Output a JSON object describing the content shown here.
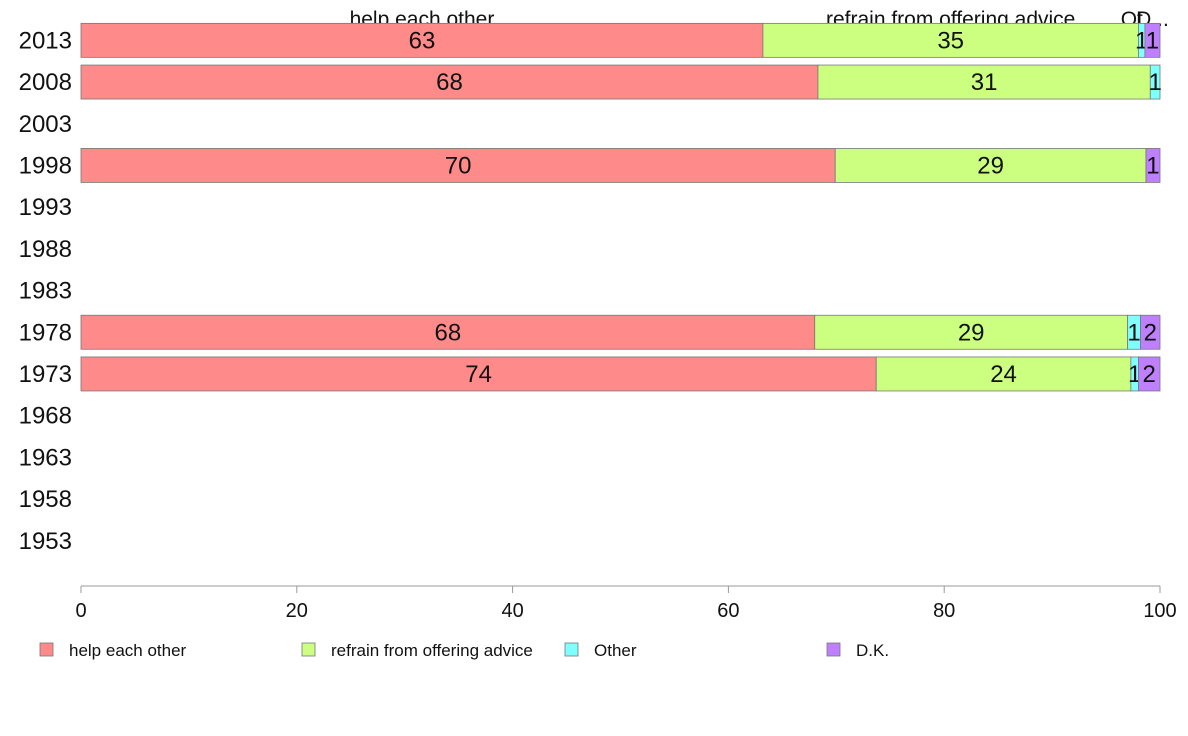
{
  "chart_data": {
    "type": "bar",
    "orientation": "horizontal",
    "stacked": true,
    "categories": [
      "2013",
      "2008",
      "2003",
      "1998",
      "1993",
      "1988",
      "1983",
      "1978",
      "1973",
      "1968",
      "1963",
      "1958",
      "1953"
    ],
    "series": [
      {
        "name": "help each other",
        "color": "#ff8a8a",
        "values": [
          63.2,
          68.3,
          null,
          69.9,
          null,
          null,
          null,
          68.0,
          73.7,
          null,
          null,
          null,
          null
        ],
        "labels": [
          "63",
          "68",
          "",
          "70",
          "",
          "",
          "",
          "68",
          "74",
          "",
          "",
          "",
          ""
        ]
      },
      {
        "name": "refrain from offering advice",
        "color": "#ccff80",
        "values": [
          34.8,
          30.8,
          null,
          28.8,
          null,
          null,
          null,
          29.0,
          23.6,
          null,
          null,
          null,
          null
        ],
        "labels": [
          "35",
          "31",
          "",
          "29",
          "",
          "",
          "",
          "29",
          "24",
          "",
          "",
          "",
          ""
        ]
      },
      {
        "name": "Other",
        "color": "#80ffff",
        "values": [
          0.6,
          0.9,
          null,
          0,
          null,
          null,
          null,
          1.2,
          0.7,
          null,
          null,
          null,
          null
        ],
        "labels": [
          "1",
          "1",
          "",
          "",
          "",
          "",
          "",
          "1",
          "1",
          "",
          "",
          "",
          ""
        ]
      },
      {
        "name": "D.K.",
        "color": "#bf80ff",
        "values": [
          1.4,
          0,
          null,
          1.3,
          null,
          null,
          null,
          1.8,
          2.0,
          null,
          null,
          null,
          null
        ],
        "labels": [
          "1",
          "",
          "",
          "1",
          "",
          "",
          "",
          "2",
          "2",
          "",
          "",
          "",
          ""
        ]
      }
    ],
    "top_labels": [
      "help each other",
      "refrain from offering advice",
      "Ot...",
      "D..."
    ],
    "xlim": [
      0,
      100
    ],
    "xticks": [
      "0",
      "20",
      "40",
      "60",
      "80",
      "100"
    ],
    "grid": false,
    "legend_position": "bottom"
  }
}
